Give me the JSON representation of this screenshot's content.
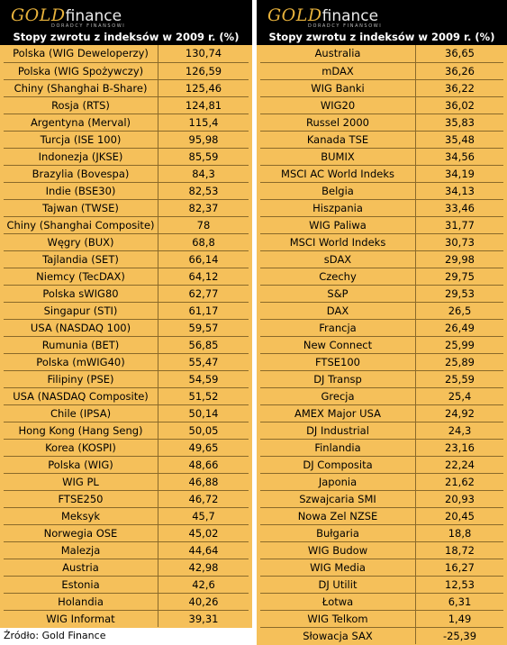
{
  "logo": {
    "gold": "GOLD",
    "finance": "finance",
    "tagline": "DORADCY FINANSOWI"
  },
  "source": "Źródło: Gold Finance",
  "chart_data": [
    {
      "type": "table",
      "title": "Stopy zwrotu z indeksów w 2009 r. (%)",
      "rows": [
        {
          "name": "Polska (WIG Deweloperzy)",
          "value": "130,74"
        },
        {
          "name": "Polska (WIG Spożywczy)",
          "value": "126,59"
        },
        {
          "name": "Chiny (Shanghai B-Share)",
          "value": "125,46"
        },
        {
          "name": "Rosja (RTS)",
          "value": "124,81"
        },
        {
          "name": "Argentyna (Merval)",
          "value": "115,4"
        },
        {
          "name": "Turcja (ISE 100)",
          "value": "95,98"
        },
        {
          "name": "Indonezja (JKSE)",
          "value": "85,59"
        },
        {
          "name": "Brazylia (Bovespa)",
          "value": "84,3"
        },
        {
          "name": "Indie (BSE30)",
          "value": "82,53"
        },
        {
          "name": "Tajwan (TWSE)",
          "value": "82,37"
        },
        {
          "name": "Chiny (Shanghai Composite)",
          "value": "78"
        },
        {
          "name": "Węgry (BUX)",
          "value": "68,8"
        },
        {
          "name": "Tajlandia (SET)",
          "value": "66,14"
        },
        {
          "name": "Niemcy (TecDAX)",
          "value": "64,12"
        },
        {
          "name": "Polska sWIG80",
          "value": "62,77"
        },
        {
          "name": "Singapur (STI)",
          "value": "61,17"
        },
        {
          "name": "USA (NASDAQ 100)",
          "value": "59,57"
        },
        {
          "name": "Rumunia (BET)",
          "value": "56,85"
        },
        {
          "name": "Polska (mWIG40)",
          "value": "55,47"
        },
        {
          "name": "Filipiny (PSE)",
          "value": "54,59"
        },
        {
          "name": "USA (NASDAQ Composite)",
          "value": "51,52"
        },
        {
          "name": "Chile (IPSA)",
          "value": "50,14"
        },
        {
          "name": "Hong Kong (Hang Seng)",
          "value": "50,05"
        },
        {
          "name": "Korea (KOSPI)",
          "value": "49,65"
        },
        {
          "name": "Polska (WIG)",
          "value": "48,66"
        },
        {
          "name": "WIG PL",
          "value": "46,88"
        },
        {
          "name": "FTSE250",
          "value": "46,72"
        },
        {
          "name": "Meksyk",
          "value": "45,7"
        },
        {
          "name": "Norwegia OSE",
          "value": "45,02"
        },
        {
          "name": "Malezja",
          "value": "44,64"
        },
        {
          "name": "Austria",
          "value": "42,98"
        },
        {
          "name": "Estonia",
          "value": "42,6"
        },
        {
          "name": "Holandia",
          "value": "40,26"
        },
        {
          "name": "WIG Informat",
          "value": "39,31"
        }
      ]
    },
    {
      "type": "table",
      "title": "Stopy zwrotu z indeksów w 2009 r. (%)",
      "rows": [
        {
          "name": "Australia",
          "value": "36,65"
        },
        {
          "name": "mDAX",
          "value": "36,26"
        },
        {
          "name": "WIG Banki",
          "value": "36,22"
        },
        {
          "name": "WIG20",
          "value": "36,02"
        },
        {
          "name": "Russel 2000",
          "value": "35,83"
        },
        {
          "name": "Kanada TSE",
          "value": "35,48"
        },
        {
          "name": "BUMIX",
          "value": "34,56"
        },
        {
          "name": "MSCI AC World Indeks",
          "value": "34,19"
        },
        {
          "name": "Belgia",
          "value": "34,13"
        },
        {
          "name": "Hiszpania",
          "value": "33,46"
        },
        {
          "name": "WIG Paliwa",
          "value": "31,77"
        },
        {
          "name": "MSCI World Indeks",
          "value": "30,73"
        },
        {
          "name": "sDAX",
          "value": "29,98"
        },
        {
          "name": "Czechy",
          "value": "29,75"
        },
        {
          "name": "S&P",
          "value": "29,53"
        },
        {
          "name": "DAX",
          "value": "26,5"
        },
        {
          "name": "Francja",
          "value": "26,49"
        },
        {
          "name": "New Connect",
          "value": "25,99"
        },
        {
          "name": "FTSE100",
          "value": "25,89"
        },
        {
          "name": "DJ Transp",
          "value": "25,59"
        },
        {
          "name": "Grecja",
          "value": "25,4"
        },
        {
          "name": "AMEX Major USA",
          "value": "24,92"
        },
        {
          "name": "DJ Industrial",
          "value": "24,3"
        },
        {
          "name": "Finlandia",
          "value": "23,16"
        },
        {
          "name": "DJ Composita",
          "value": "22,24"
        },
        {
          "name": "Japonia",
          "value": "21,62"
        },
        {
          "name": "Szwajcaria SMI",
          "value": "20,93"
        },
        {
          "name": "Nowa Zel NZSE",
          "value": "20,45"
        },
        {
          "name": "Bułgaria",
          "value": "18,8"
        },
        {
          "name": "WIG Budow",
          "value": "18,72"
        },
        {
          "name": "WIG Media",
          "value": "16,27"
        },
        {
          "name": "DJ Utilit",
          "value": "12,53"
        },
        {
          "name": "Łotwa",
          "value": "6,31"
        },
        {
          "name": "WIG Telkom",
          "value": "1,49"
        },
        {
          "name": "Słowacja SAX",
          "value": "-25,39"
        }
      ]
    }
  ]
}
